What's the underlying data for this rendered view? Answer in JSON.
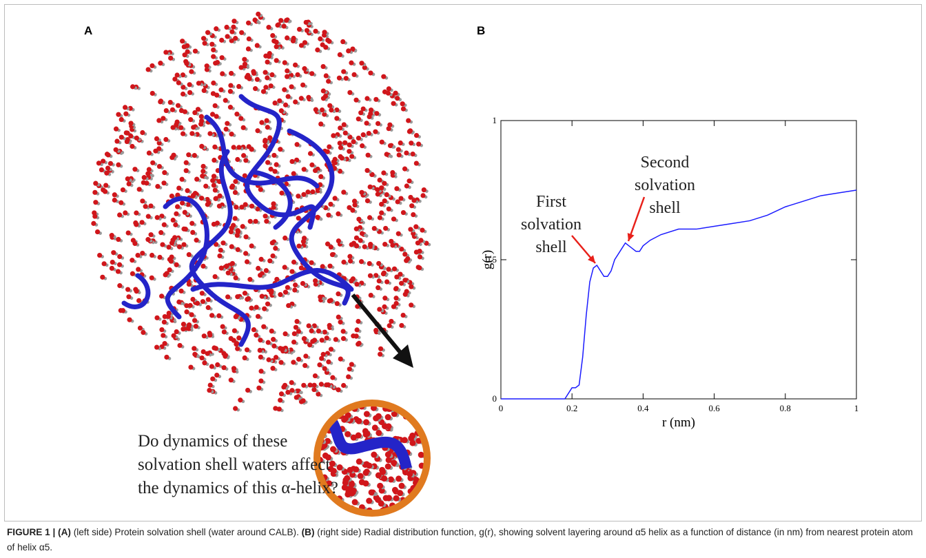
{
  "panel_a": {
    "label": "A",
    "question": [
      "Do dynamics of these",
      "solvation shell waters affect",
      "the dynamics of this α-helix?"
    ]
  },
  "panel_b": {
    "label": "B"
  },
  "chart_data": {
    "type": "line",
    "x_label": "r (nm)",
    "y_label": "g(r)",
    "x": [
      0,
      0.18,
      0.19,
      0.2,
      0.21,
      0.22,
      0.23,
      0.24,
      0.25,
      0.26,
      0.27,
      0.28,
      0.29,
      0.3,
      0.31,
      0.32,
      0.33,
      0.34,
      0.35,
      0.36,
      0.37,
      0.38,
      0.39,
      0.4,
      0.42,
      0.45,
      0.5,
      0.55,
      0.6,
      0.65,
      0.7,
      0.75,
      0.8,
      0.85,
      0.9,
      0.95,
      1
    ],
    "values": [
      0,
      0,
      0.02,
      0.04,
      0.04,
      0.05,
      0.15,
      0.3,
      0.42,
      0.47,
      0.48,
      0.46,
      0.44,
      0.44,
      0.46,
      0.5,
      0.52,
      0.54,
      0.56,
      0.55,
      0.54,
      0.53,
      0.53,
      0.55,
      0.57,
      0.59,
      0.61,
      0.61,
      0.62,
      0.63,
      0.64,
      0.66,
      0.69,
      0.71,
      0.73,
      0.74,
      0.75
    ],
    "color": "#1a1aff",
    "xlim": [
      0,
      1
    ],
    "ylim": [
      0,
      1
    ],
    "xticks": [
      0,
      0.2,
      0.4,
      0.6,
      0.8,
      1
    ],
    "yticks": [
      0,
      0.5,
      1
    ],
    "annotations": [
      {
        "lines": [
          "First",
          "solvation",
          "shell"
        ],
        "color": "#e8201a"
      },
      {
        "lines": [
          "Second",
          "solvation",
          "shell"
        ],
        "color": "#e8201a"
      }
    ]
  },
  "caption": [
    {
      "text": "FIGURE 1 | (A)",
      "bold": true
    },
    {
      "text": " (left side) Protein solvation shell (water around CALB). ",
      "bold": false
    },
    {
      "text": "(B)",
      "bold": true
    },
    {
      "text": " (right side) Radial distribution function, g(r), showing solvent layering around α5 helix as a function of distance (in nm) from nearest protein atom of helix α5.",
      "bold": false
    }
  ]
}
